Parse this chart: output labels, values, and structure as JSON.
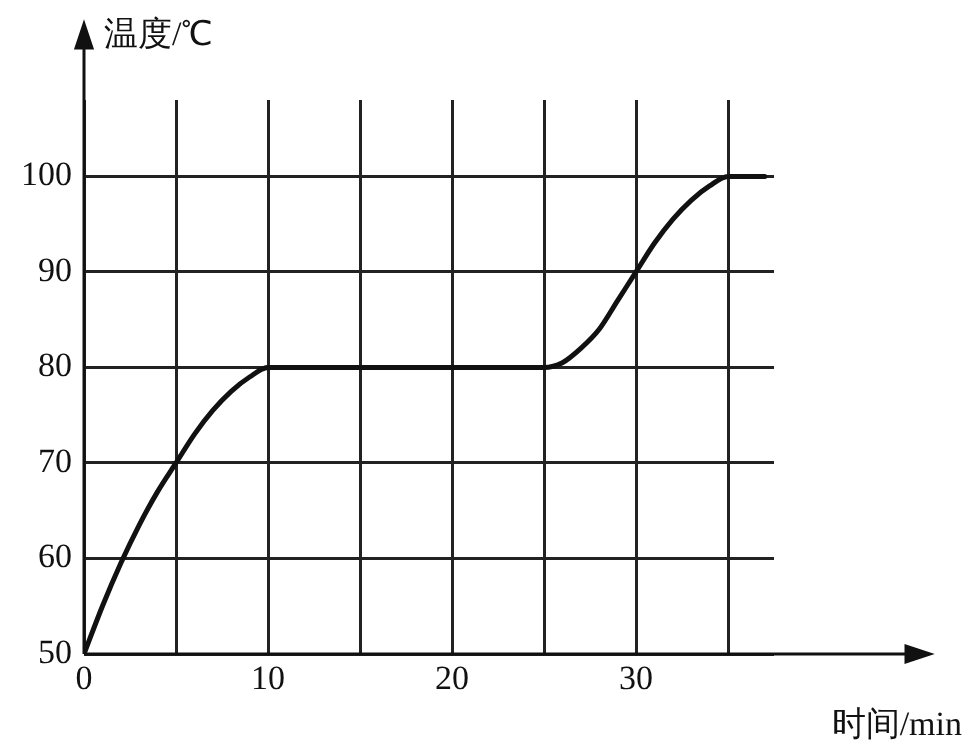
{
  "chart_data": {
    "type": "line",
    "xlabel": "时间/min",
    "ylabel": "温度/℃",
    "x": [
      0,
      1,
      2,
      3,
      4,
      5,
      6,
      7,
      8,
      9,
      10,
      25,
      26,
      27,
      28,
      29,
      30,
      31,
      32,
      33,
      34,
      35,
      37
    ],
    "series": [
      {
        "color": "#111111",
        "values": [
          50,
          55,
          59.5,
          63.5,
          67,
          70,
          73,
          75.5,
          77.5,
          79,
          80,
          80,
          80.5,
          82,
          84,
          87,
          90,
          93,
          95.5,
          97.5,
          99,
          100,
          100
        ]
      }
    ],
    "xlim": [
      0,
      37.5
    ],
    "ylim": [
      50,
      108
    ],
    "xticks": [
      0,
      {
        "value": 5,
        "label": null
      },
      10,
      {
        "value": 15,
        "label": null
      },
      20,
      {
        "value": 25,
        "label": null
      },
      30,
      {
        "value": 35,
        "label": null
      }
    ],
    "yticks": [
      50,
      60,
      70,
      80,
      90,
      100
    ],
    "grid": true,
    "legend": false,
    "marker": "none",
    "line_style": "solid"
  }
}
